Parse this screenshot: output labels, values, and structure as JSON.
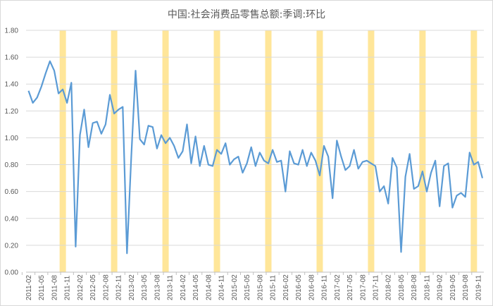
{
  "chart_data": {
    "type": "line",
    "title": "中国:社会消费品零售总额:季调:环比",
    "xlabel": "",
    "ylabel": "",
    "ylim": [
      0,
      1.8
    ],
    "yticks": [
      "0.00",
      "0.20",
      "0.40",
      "0.60",
      "0.80",
      "1.00",
      "1.20",
      "1.40",
      "1.60",
      "1.80"
    ],
    "grid": true,
    "legend": "none",
    "x_tick_labels": [
      "2011-02",
      "2011-05",
      "2011-08",
      "2011-11",
      "2012-02",
      "2012-05",
      "2012-08",
      "2012-11",
      "2013-02",
      "2013-05",
      "2013-08",
      "2013-11",
      "2014-02",
      "2014-05",
      "2014-08",
      "2014-11",
      "2015-02",
      "2015-05",
      "2015-08",
      "2015-11",
      "2016-02",
      "2016-05",
      "2016-08",
      "2016-11",
      "2017-02",
      "2017-05",
      "2017-08",
      "2017-11",
      "2018-02",
      "2018-05",
      "2018-08",
      "2018-11",
      "2019-02",
      "2019-05",
      "2019-08",
      "2019-11"
    ],
    "x_start": "2011-02",
    "x_end": "2019-12",
    "highlight_months": [
      "2011-10",
      "2012-10",
      "2013-10",
      "2014-10",
      "2015-10",
      "2016-10",
      "2017-10",
      "2018-10",
      "2019-10"
    ],
    "highlight_color": "#FFE699",
    "line_color": "#5B9BD5",
    "series": [
      {
        "name": "社会消费品零售总额:季调:环比",
        "values": [
          1.35,
          1.26,
          1.3,
          1.38,
          1.48,
          1.57,
          1.5,
          1.33,
          1.36,
          1.26,
          1.41,
          0.19,
          1.02,
          1.21,
          0.93,
          1.11,
          1.12,
          1.03,
          1.1,
          1.32,
          1.18,
          1.21,
          1.23,
          0.14,
          0.86,
          1.5,
          0.99,
          0.95,
          1.09,
          1.08,
          0.92,
          1.02,
          0.96,
          1.0,
          0.94,
          0.85,
          0.9,
          1.1,
          0.81,
          1.01,
          0.79,
          0.94,
          0.8,
          0.79,
          0.91,
          0.88,
          0.96,
          0.8,
          0.84,
          0.86,
          0.74,
          0.81,
          0.93,
          0.79,
          0.89,
          0.83,
          0.81,
          0.91,
          0.82,
          0.83,
          0.6,
          0.9,
          0.81,
          0.8,
          0.91,
          0.79,
          0.89,
          0.83,
          0.72,
          0.94,
          0.86,
          0.55,
          0.98,
          0.86,
          0.76,
          0.79,
          0.91,
          0.77,
          0.82,
          0.83,
          0.81,
          0.79,
          0.6,
          0.64,
          0.51,
          0.85,
          0.78,
          0.15,
          0.71,
          0.88,
          0.62,
          0.64,
          0.75,
          0.6,
          0.74,
          0.83,
          0.49,
          0.79,
          0.81,
          0.48,
          0.57,
          0.59,
          0.56,
          0.89,
          0.8,
          0.82,
          0.7
        ]
      }
    ]
  }
}
